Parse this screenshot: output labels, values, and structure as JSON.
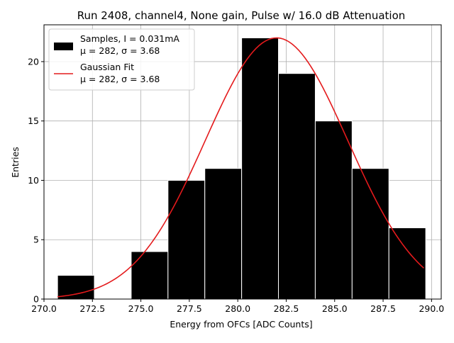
{
  "chart_data": {
    "type": "bar",
    "title": "Run 2408, channel4, None gain, Pulse w/ 16.0 dB Attenuation",
    "xlabel": "Energy from OFCs [ADC Counts]",
    "ylabel": "Entries",
    "xlim": [
      270.0,
      290.5
    ],
    "ylim": [
      0,
      23.1
    ],
    "grid": true,
    "legend_position": "top-left",
    "x_ticks": [
      270.0,
      272.5,
      275.0,
      277.5,
      280.0,
      282.5,
      285.0,
      287.5,
      290.0
    ],
    "x_tick_labels": [
      "270.0",
      "272.5",
      "275.0",
      "277.5",
      "280.0",
      "282.5",
      "285.0",
      "287.5",
      "290.0"
    ],
    "y_ticks": [
      0,
      5,
      10,
      15,
      20
    ],
    "y_tick_labels": [
      "0",
      "5",
      "10",
      "15",
      "20"
    ],
    "bins": [
      {
        "x0": 270.7,
        "x1": 272.6,
        "count": 2
      },
      {
        "x0": 272.6,
        "x1": 274.5,
        "count": 0
      },
      {
        "x0": 274.5,
        "x1": 276.4,
        "count": 4
      },
      {
        "x0": 276.4,
        "x1": 278.3,
        "count": 10
      },
      {
        "x0": 278.3,
        "x1": 280.2,
        "count": 11
      },
      {
        "x0": 280.2,
        "x1": 282.1,
        "count": 22
      },
      {
        "x0": 282.1,
        "x1": 284.0,
        "count": 19
      },
      {
        "x0": 284.0,
        "x1": 285.9,
        "count": 15
      },
      {
        "x0": 285.9,
        "x1": 287.8,
        "count": 11
      },
      {
        "x0": 287.8,
        "x1": 289.7,
        "count": 6
      }
    ],
    "series": [
      {
        "name": "Samples, I = 0.031mA",
        "stats": "μ = 282, σ = 3.68",
        "kind": "histogram",
        "color": "#000000"
      },
      {
        "name": "Gaussian Fit",
        "stats": "μ = 282, σ = 3.68",
        "kind": "line",
        "color": "#e41a1c",
        "amplitude": 22.0,
        "mu": 282.0,
        "sigma": 3.68,
        "x_range": [
          270.7,
          289.6
        ]
      }
    ]
  }
}
